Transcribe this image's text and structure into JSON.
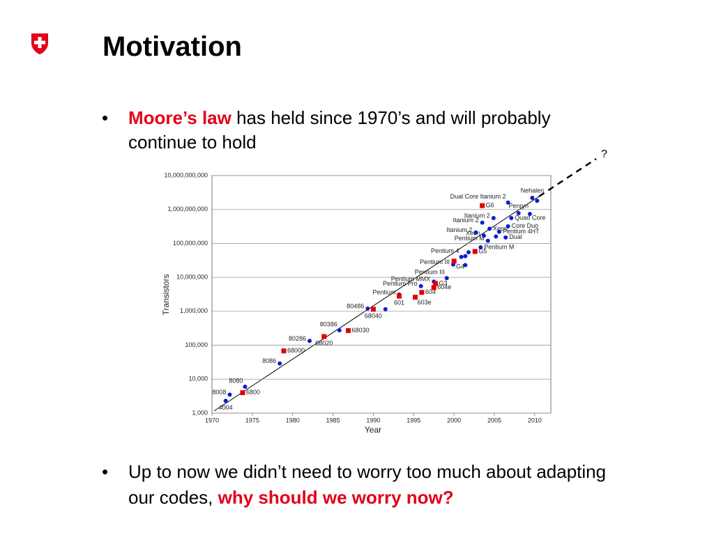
{
  "title": "Motivation",
  "bullets": [
    [
      "Moore’s law",
      " has held since 1970’s and will probably",
      "continue to hold"
    ],
    [
      "Up to now we didn’t need to worry too much about adapting",
      "our codes, ",
      "why should we worry now?"
    ]
  ],
  "chart_data": {
    "type": "scatter",
    "xlabel": "Year",
    "ylabel": "Transistors",
    "annotation": "?",
    "xlim": [
      1970,
      2012
    ],
    "ylim": [
      1000,
      10000000000
    ],
    "log_y": true,
    "grid": true,
    "xticks": [
      1970,
      1975,
      1980,
      1985,
      1990,
      1995,
      2000,
      2005,
      2010
    ],
    "yticks": [
      {
        "value": 1000,
        "label": "1,000"
      },
      {
        "value": 10000,
        "label": "10,000"
      },
      {
        "value": 100000,
        "label": "100,000"
      },
      {
        "value": 1000000,
        "label": "1,000,000"
      },
      {
        "value": 10000000,
        "label": "10,000,000"
      },
      {
        "value": 100000000,
        "label": "100,000,000"
      },
      {
        "value": 1000000000,
        "label": "1,000,000,000"
      },
      {
        "value": 10000000000,
        "label": "10,000,000,000"
      }
    ],
    "series": [
      {
        "color": "#0a1ed0",
        "marker": "circle",
        "x": [
          1971.7,
          1972.2,
          1974.1,
          1978.4,
          1982.1,
          1985.8,
          1989.3,
          1991.5,
          1993.2,
          1995.9,
          1997.5,
          1999.1,
          1999.9,
          2000.9,
          2001.4,
          2001.8,
          2001.4,
          2003.3,
          2004.2,
          2003.7,
          2002.7,
          2003.5,
          2004.9,
          2004.4,
          2005.2,
          2005.6,
          2006.4,
          2006.7,
          2007.1,
          2008.0,
          2006.7,
          2009.7,
          2010.3,
          2009.4
        ],
        "values": [
          2300,
          3500,
          6000,
          29000,
          134000,
          275000,
          1200000,
          1150000,
          3100000,
          5500000,
          7500000,
          9500000,
          24000000,
          40000000,
          42000000,
          55000000,
          23000000,
          77000000,
          120000000,
          170000000,
          210000000,
          410000000,
          560000000,
          270000000,
          160000000,
          220000000,
          150000000,
          320000000,
          560000000,
          780000000,
          1600000000,
          2200000000,
          1800000000,
          740000000
        ],
        "labels": [
          "4004",
          "8008",
          "8080",
          "8086",
          "80286",
          "80386",
          "80486",
          null,
          "Pentium",
          "Pentium Pro",
          "Pentium MMX",
          "Pentium III",
          "Pentium III",
          "Pentium 4",
          null,
          null,
          null,
          "Pentium M",
          "Pentium M",
          "Xeon",
          "Itanium 2",
          "Itanium 2",
          "Itanium 2",
          "Xeon",
          null,
          "Pentium 4HT",
          "Dual",
          "Core Duo",
          "Quad Core",
          "Penryn",
          "Dual Core Itanium 2",
          "Nehalen",
          null,
          null
        ]
      },
      {
        "color": "#e00000",
        "marker": "square",
        "x": [
          1973.8,
          1978.9,
          1983.9,
          1986.9,
          1990.0,
          1993.2,
          1995.2,
          1996.0,
          1997.5,
          1997.7,
          2000.0,
          2002.6,
          2003.5
        ],
        "values": [
          4000,
          68000,
          180000,
          270000,
          1150000,
          2800000,
          2600000,
          3600000,
          5000000,
          6600000,
          30000000,
          58000000,
          1300000000
        ],
        "labels": [
          "6800",
          "68000",
          "68020",
          "68030",
          "68040",
          "601",
          "603e",
          "604",
          "604e",
          "G3",
          "G4",
          "G5",
          "G6"
        ]
      }
    ]
  }
}
